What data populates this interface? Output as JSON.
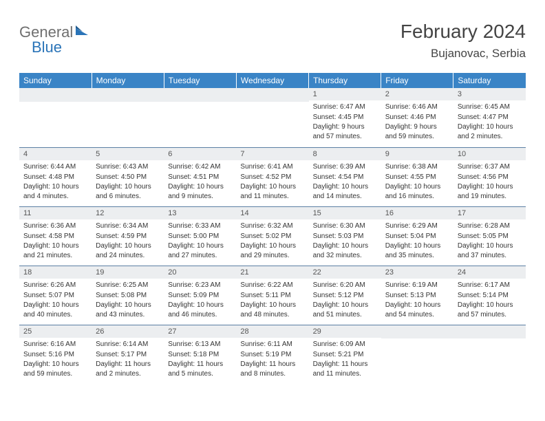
{
  "logo": {
    "text1": "General",
    "text2": "Blue"
  },
  "header": {
    "title": "February 2024",
    "location": "Bujanovac, Serbia"
  },
  "colors": {
    "header_bg": "#3a84c6",
    "header_text": "#ffffff",
    "daybar_bg": "#eceef0",
    "daybar_border": "#5a7ea3",
    "body_text": "#333333",
    "logo_gray": "#6f6f6f",
    "logo_blue": "#2a74b8"
  },
  "typography": {
    "title_fontsize": 28,
    "location_fontsize": 17,
    "dayheader_fontsize": 12,
    "daynum_fontsize": 11,
    "cell_fontsize": 10
  },
  "day_headers": [
    "Sunday",
    "Monday",
    "Tuesday",
    "Wednesday",
    "Thursday",
    "Friday",
    "Saturday"
  ],
  "labels": {
    "sunrise": "Sunrise:",
    "sunset": "Sunset:",
    "daylight": "Daylight:"
  },
  "weeks": [
    [
      {
        "empty": true
      },
      {
        "empty": true
      },
      {
        "empty": true
      },
      {
        "empty": true
      },
      {
        "num": "1",
        "sunrise": "6:47 AM",
        "sunset": "4:45 PM",
        "daylight": "9 hours and 57 minutes."
      },
      {
        "num": "2",
        "sunrise": "6:46 AM",
        "sunset": "4:46 PM",
        "daylight": "9 hours and 59 minutes."
      },
      {
        "num": "3",
        "sunrise": "6:45 AM",
        "sunset": "4:47 PM",
        "daylight": "10 hours and 2 minutes."
      }
    ],
    [
      {
        "num": "4",
        "sunrise": "6:44 AM",
        "sunset": "4:48 PM",
        "daylight": "10 hours and 4 minutes."
      },
      {
        "num": "5",
        "sunrise": "6:43 AM",
        "sunset": "4:50 PM",
        "daylight": "10 hours and 6 minutes."
      },
      {
        "num": "6",
        "sunrise": "6:42 AM",
        "sunset": "4:51 PM",
        "daylight": "10 hours and 9 minutes."
      },
      {
        "num": "7",
        "sunrise": "6:41 AM",
        "sunset": "4:52 PM",
        "daylight": "10 hours and 11 minutes."
      },
      {
        "num": "8",
        "sunrise": "6:39 AM",
        "sunset": "4:54 PM",
        "daylight": "10 hours and 14 minutes."
      },
      {
        "num": "9",
        "sunrise": "6:38 AM",
        "sunset": "4:55 PM",
        "daylight": "10 hours and 16 minutes."
      },
      {
        "num": "10",
        "sunrise": "6:37 AM",
        "sunset": "4:56 PM",
        "daylight": "10 hours and 19 minutes."
      }
    ],
    [
      {
        "num": "11",
        "sunrise": "6:36 AM",
        "sunset": "4:58 PM",
        "daylight": "10 hours and 21 minutes."
      },
      {
        "num": "12",
        "sunrise": "6:34 AM",
        "sunset": "4:59 PM",
        "daylight": "10 hours and 24 minutes."
      },
      {
        "num": "13",
        "sunrise": "6:33 AM",
        "sunset": "5:00 PM",
        "daylight": "10 hours and 27 minutes."
      },
      {
        "num": "14",
        "sunrise": "6:32 AM",
        "sunset": "5:02 PM",
        "daylight": "10 hours and 29 minutes."
      },
      {
        "num": "15",
        "sunrise": "6:30 AM",
        "sunset": "5:03 PM",
        "daylight": "10 hours and 32 minutes."
      },
      {
        "num": "16",
        "sunrise": "6:29 AM",
        "sunset": "5:04 PM",
        "daylight": "10 hours and 35 minutes."
      },
      {
        "num": "17",
        "sunrise": "6:28 AM",
        "sunset": "5:05 PM",
        "daylight": "10 hours and 37 minutes."
      }
    ],
    [
      {
        "num": "18",
        "sunrise": "6:26 AM",
        "sunset": "5:07 PM",
        "daylight": "10 hours and 40 minutes."
      },
      {
        "num": "19",
        "sunrise": "6:25 AM",
        "sunset": "5:08 PM",
        "daylight": "10 hours and 43 minutes."
      },
      {
        "num": "20",
        "sunrise": "6:23 AM",
        "sunset": "5:09 PM",
        "daylight": "10 hours and 46 minutes."
      },
      {
        "num": "21",
        "sunrise": "6:22 AM",
        "sunset": "5:11 PM",
        "daylight": "10 hours and 48 minutes."
      },
      {
        "num": "22",
        "sunrise": "6:20 AM",
        "sunset": "5:12 PM",
        "daylight": "10 hours and 51 minutes."
      },
      {
        "num": "23",
        "sunrise": "6:19 AM",
        "sunset": "5:13 PM",
        "daylight": "10 hours and 54 minutes."
      },
      {
        "num": "24",
        "sunrise": "6:17 AM",
        "sunset": "5:14 PM",
        "daylight": "10 hours and 57 minutes."
      }
    ],
    [
      {
        "num": "25",
        "sunrise": "6:16 AM",
        "sunset": "5:16 PM",
        "daylight": "10 hours and 59 minutes."
      },
      {
        "num": "26",
        "sunrise": "6:14 AM",
        "sunset": "5:17 PM",
        "daylight": "11 hours and 2 minutes."
      },
      {
        "num": "27",
        "sunrise": "6:13 AM",
        "sunset": "5:18 PM",
        "daylight": "11 hours and 5 minutes."
      },
      {
        "num": "28",
        "sunrise": "6:11 AM",
        "sunset": "5:19 PM",
        "daylight": "11 hours and 8 minutes."
      },
      {
        "num": "29",
        "sunrise": "6:09 AM",
        "sunset": "5:21 PM",
        "daylight": "11 hours and 11 minutes."
      },
      {
        "empty": true
      },
      {
        "empty": true
      }
    ]
  ]
}
